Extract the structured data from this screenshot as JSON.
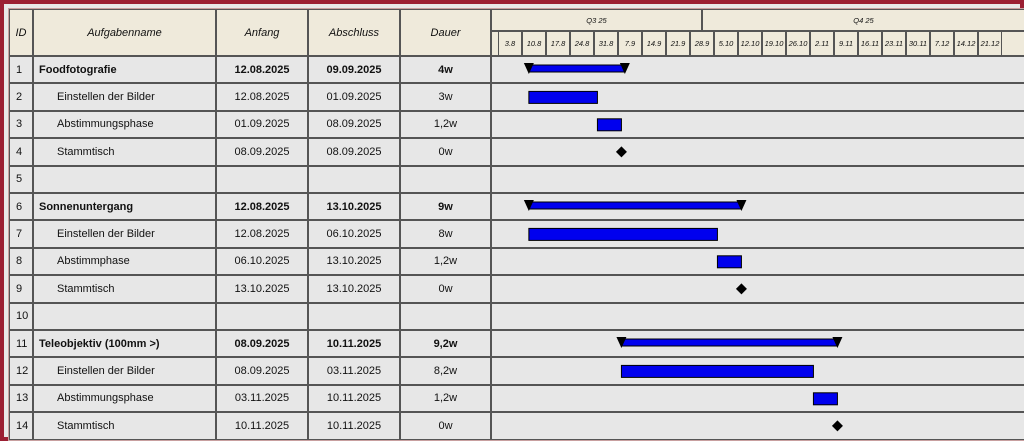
{
  "headers": {
    "id": "ID",
    "name": "Aufgabenname",
    "start": "Anfang",
    "end": "Abschluss",
    "duration": "Dauer"
  },
  "quarters": [
    "Q3 25",
    "Q4 25"
  ],
  "ticks": [
    "3.8",
    "10.8",
    "17.8",
    "24.8",
    "31.8",
    "7.9",
    "14.9",
    "21.9",
    "28.9",
    "5.10",
    "12.10",
    "19.10",
    "26.10",
    "2.11",
    "9.11",
    "16.11",
    "23.11",
    "30.11",
    "7.12",
    "14.12",
    "21.12"
  ],
  "rows": [
    {
      "id": "1",
      "name": "Foodfotografie",
      "start": "12.08.2025",
      "end": "09.09.2025",
      "duration": "4w",
      "type": "summary"
    },
    {
      "id": "2",
      "name": "Einstellen der Bilder",
      "start": "12.08.2025",
      "end": "01.09.2025",
      "duration": "3w",
      "type": "task"
    },
    {
      "id": "3",
      "name": "Abstimmungsphase",
      "start": "01.09.2025",
      "end": "08.09.2025",
      "duration": "1,2w",
      "type": "task"
    },
    {
      "id": "4",
      "name": "Stammtisch",
      "start": "08.09.2025",
      "end": "08.09.2025",
      "duration": "0w",
      "type": "milestone"
    },
    {
      "id": "5",
      "name": "",
      "start": "",
      "end": "",
      "duration": "",
      "type": "empty"
    },
    {
      "id": "6",
      "name": "Sonnenuntergang",
      "start": "12.08.2025",
      "end": "13.10.2025",
      "duration": "9w",
      "type": "summary"
    },
    {
      "id": "7",
      "name": "Einstellen der Bilder",
      "start": "12.08.2025",
      "end": "06.10.2025",
      "duration": "8w",
      "type": "task"
    },
    {
      "id": "8",
      "name": "Abstimmphase",
      "start": "06.10.2025",
      "end": "13.10.2025",
      "duration": "1,2w",
      "type": "task"
    },
    {
      "id": "9",
      "name": "Stammtisch",
      "start": "13.10.2025",
      "end": "13.10.2025",
      "duration": "0w",
      "type": "milestone"
    },
    {
      "id": "10",
      "name": "",
      "start": "",
      "end": "",
      "duration": "",
      "type": "empty"
    },
    {
      "id": "11",
      "name": "Teleobjektiv (100mm >)",
      "start": "08.09.2025",
      "end": "10.11.2025",
      "duration": "9,2w",
      "type": "summary"
    },
    {
      "id": "12",
      "name": "Einstellen der Bilder",
      "start": "08.09.2025",
      "end": "03.11.2025",
      "duration": "8,2w",
      "type": "task"
    },
    {
      "id": "13",
      "name": "Abstimmungsphase",
      "start": "03.11.2025",
      "end": "10.11.2025",
      "duration": "1,2w",
      "type": "task"
    },
    {
      "id": "14",
      "name": "Stammtisch",
      "start": "10.11.2025",
      "end": "10.11.2025",
      "duration": "0w",
      "type": "milestone"
    }
  ],
  "chart_data": {
    "type": "gantt",
    "x_axis": "date",
    "x_range": [
      "2025-08-03",
      "2025-12-28"
    ],
    "tasks": [
      {
        "row": "1",
        "start": "2025-08-12",
        "end": "2025-09-09",
        "kind": "summary"
      },
      {
        "row": "2",
        "start": "2025-08-12",
        "end": "2025-09-01",
        "kind": "task"
      },
      {
        "row": "3",
        "start": "2025-09-01",
        "end": "2025-09-08",
        "kind": "task"
      },
      {
        "row": "4",
        "start": "2025-09-08",
        "end": "2025-09-08",
        "kind": "milestone"
      },
      {
        "row": "6",
        "start": "2025-08-12",
        "end": "2025-10-13",
        "kind": "summary"
      },
      {
        "row": "7",
        "start": "2025-08-12",
        "end": "2025-10-06",
        "kind": "task"
      },
      {
        "row": "8",
        "start": "2025-10-06",
        "end": "2025-10-13",
        "kind": "task"
      },
      {
        "row": "9",
        "start": "2025-10-13",
        "end": "2025-10-13",
        "kind": "milestone"
      },
      {
        "row": "11",
        "start": "2025-09-08",
        "end": "2025-11-10",
        "kind": "summary"
      },
      {
        "row": "12",
        "start": "2025-09-08",
        "end": "2025-11-03",
        "kind": "task"
      },
      {
        "row": "13",
        "start": "2025-11-03",
        "end": "2025-11-10",
        "kind": "task"
      },
      {
        "row": "14",
        "start": "2025-11-10",
        "end": "2025-11-10",
        "kind": "milestone"
      }
    ]
  },
  "colors": {
    "bar": "#0000ee",
    "frame": "#9b1f33",
    "header_bg": "#efeadb",
    "row_bg": "#e7e7e7",
    "marker": "#000000"
  }
}
